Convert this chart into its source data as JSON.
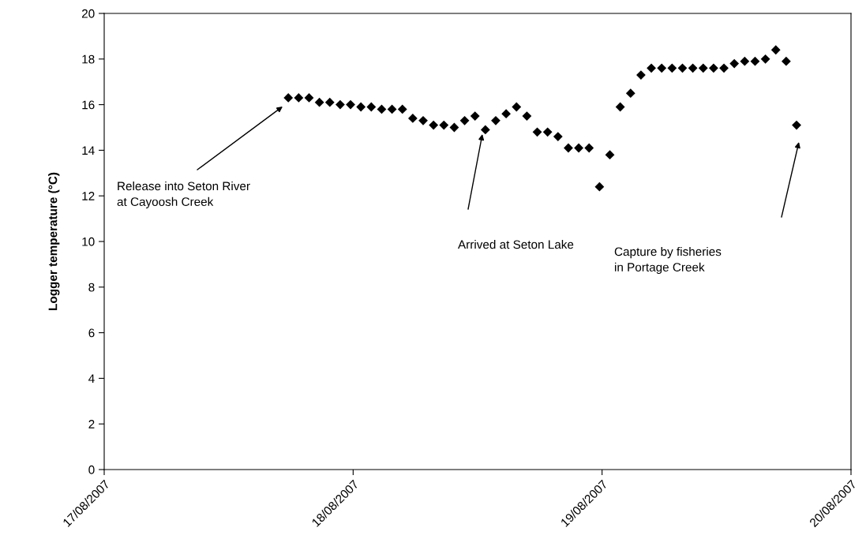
{
  "chart_data": {
    "type": "scatter",
    "ylabel": "Logger temperature (°C)",
    "x": [
      "2007-08-17T17:45",
      "2007-08-17T18:45",
      "2007-08-17T19:45",
      "2007-08-17T20:45",
      "2007-08-17T21:45",
      "2007-08-17T22:45",
      "2007-08-17T23:45",
      "2007-08-18T00:45",
      "2007-08-18T01:45",
      "2007-08-18T02:45",
      "2007-08-18T03:45",
      "2007-08-18T04:45",
      "2007-08-18T05:45",
      "2007-08-18T06:45",
      "2007-08-18T07:45",
      "2007-08-18T08:45",
      "2007-08-18T09:45",
      "2007-08-18T10:45",
      "2007-08-18T11:45",
      "2007-08-18T12:45",
      "2007-08-18T13:45",
      "2007-08-18T14:45",
      "2007-08-18T15:45",
      "2007-08-18T16:45",
      "2007-08-18T17:45",
      "2007-08-18T18:45",
      "2007-08-18T19:45",
      "2007-08-18T20:45",
      "2007-08-18T21:45",
      "2007-08-18T22:45",
      "2007-08-18T23:45",
      "2007-08-19T00:45",
      "2007-08-19T01:45",
      "2007-08-19T02:45",
      "2007-08-19T03:45",
      "2007-08-19T04:45",
      "2007-08-19T05:45",
      "2007-08-19T06:45",
      "2007-08-19T07:45",
      "2007-08-19T08:45",
      "2007-08-19T09:45",
      "2007-08-19T10:45",
      "2007-08-19T11:45",
      "2007-08-19T12:45",
      "2007-08-19T13:45",
      "2007-08-19T14:45",
      "2007-08-19T15:45",
      "2007-08-19T16:45",
      "2007-08-19T17:45",
      "2007-08-19T18:45"
    ],
    "series": [
      {
        "color": "#000000",
        "values": [
          16.3,
          16.3,
          16.3,
          16.1,
          16.1,
          16.0,
          16.0,
          15.9,
          15.9,
          15.8,
          15.8,
          15.8,
          15.4,
          15.3,
          15.1,
          15.1,
          15.0,
          15.3,
          15.5,
          14.9,
          15.3,
          15.6,
          15.9,
          15.5,
          14.8,
          14.8,
          14.6,
          14.1,
          14.1,
          14.1,
          12.4,
          13.8,
          15.9,
          16.5,
          17.3,
          17.6,
          17.6,
          17.6,
          17.6,
          17.6,
          17.6,
          17.6,
          17.6,
          17.8,
          17.9,
          17.9,
          18.0,
          18.4,
          17.9,
          15.1
        ]
      }
    ],
    "marker": "diamond",
    "xlim": [
      "2007-08-17",
      "2007-08-20"
    ],
    "xticks": [
      {
        "value": "2007-08-17",
        "label": "17/08/2007"
      },
      {
        "value": "2007-08-18",
        "label": "18/08/2007"
      },
      {
        "value": "2007-08-19",
        "label": "19/08/2007"
      },
      {
        "value": "2007-08-20",
        "label": "20/08/2007"
      }
    ],
    "ylim": [
      0,
      20
    ],
    "yticks": [
      0,
      2,
      4,
      6,
      8,
      10,
      12,
      14,
      16,
      18,
      20
    ],
    "grid": false,
    "legend": false,
    "annotations": [
      "Release into Seton River\nat Cayoosh Creek",
      "Arrived at Seton Lake",
      "Capture by fisheries\nin Portage Creek"
    ]
  }
}
